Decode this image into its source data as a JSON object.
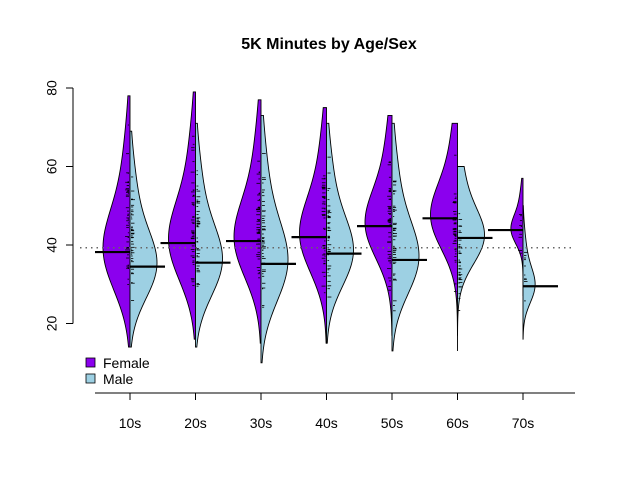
{
  "chart_data": {
    "type": "beanplot",
    "title": "5K Minutes by Age/Sex",
    "xlabel": "",
    "ylabel": "",
    "categories": [
      "10s",
      "20s",
      "30s",
      "40s",
      "50s",
      "60s",
      "70s"
    ],
    "ylim": [
      0,
      80
    ],
    "yticks": [
      20,
      40,
      60,
      80
    ],
    "overall_mean": 39.3,
    "series": [
      {
        "name": "Female",
        "color": "#8b00ee",
        "side": "left",
        "means": [
          38.2,
          40.5,
          41.0,
          42.0,
          44.8,
          46.8,
          43.8
        ],
        "ranges": [
          [
            20,
            73
          ],
          [
            22,
            74
          ],
          [
            21,
            72
          ],
          [
            21,
            70
          ],
          [
            23,
            68
          ],
          [
            23,
            66
          ],
          [
            33,
            52
          ]
        ]
      },
      {
        "name": "Male",
        "color": "#9dd0e3",
        "side": "right",
        "means": [
          34.5,
          35.5,
          35.2,
          37.8,
          36.2,
          41.8,
          29.5
        ],
        "ranges": [
          [
            20,
            64
          ],
          [
            20,
            66
          ],
          [
            16,
            68
          ],
          [
            21,
            66
          ],
          [
            19,
            66
          ],
          [
            19,
            55
          ],
          [
            22,
            45
          ]
        ]
      }
    ],
    "legend": {
      "position": "bottom-left",
      "entries": [
        "Female",
        "Male"
      ]
    }
  }
}
